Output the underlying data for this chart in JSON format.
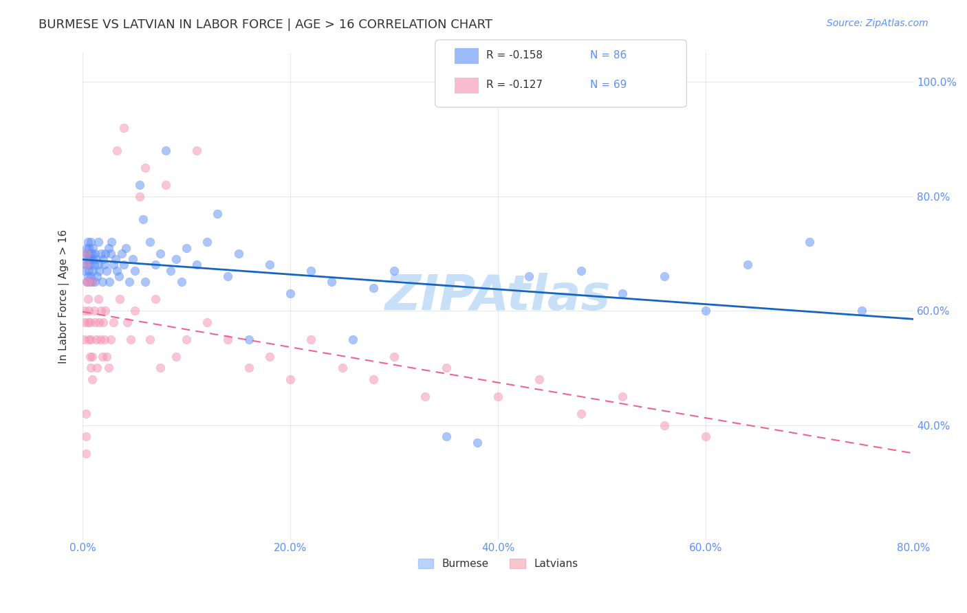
{
  "title": "BURMESE VS LATVIAN IN LABOR FORCE | AGE > 16 CORRELATION CHART",
  "source": "Source: ZipAtlas.com",
  "ylabel": "In Labor Force | Age > 16",
  "x_tick_labels": [
    "0.0%",
    "20.0%",
    "40.0%",
    "60.0%",
    "80.0%"
  ],
  "x_tick_positions": [
    0.0,
    0.2,
    0.4,
    0.6,
    0.8
  ],
  "y_tick_labels_right": [
    "40.0%",
    "60.0%",
    "80.0%",
    "100.0%"
  ],
  "y_tick_positions_right": [
    0.4,
    0.6,
    0.8,
    1.0
  ],
  "xlim": [
    0.0,
    0.8
  ],
  "ylim": [
    0.2,
    1.05
  ],
  "legend_R_labels": [
    "R = -0.158",
    "R = -0.127"
  ],
  "legend_N_labels": [
    "N = 86",
    "N = 69"
  ],
  "legend_labels_bottom": [
    "Burmese",
    "Latvians"
  ],
  "legend_colors_bottom": [
    "#8ab4f8",
    "#f4a0b0"
  ],
  "watermark": "ZIPAtlas",
  "watermark_color": "#c8dff8",
  "blue_color": "#5b8ff9",
  "pink_color": "#f48fb1",
  "blue_line_color": "#1565c0",
  "pink_line_color": "#f06292",
  "title_color": "#333333",
  "source_color": "#5b8ff9",
  "axis_label_color": "#333333",
  "tick_label_color": "#5b8ff9",
  "grid_color": "#cccccc",
  "background_color": "#ffffff",
  "burmese_x": [
    0.002,
    0.003,
    0.003,
    0.004,
    0.004,
    0.004,
    0.005,
    0.005,
    0.005,
    0.005,
    0.006,
    0.006,
    0.006,
    0.007,
    0.007,
    0.007,
    0.008,
    0.008,
    0.008,
    0.009,
    0.009,
    0.01,
    0.01,
    0.01,
    0.011,
    0.012,
    0.012,
    0.013,
    0.014,
    0.015,
    0.015,
    0.016,
    0.018,
    0.019,
    0.02,
    0.021,
    0.022,
    0.023,
    0.025,
    0.026,
    0.027,
    0.028,
    0.03,
    0.032,
    0.033,
    0.035,
    0.038,
    0.04,
    0.042,
    0.045,
    0.048,
    0.05,
    0.055,
    0.058,
    0.06,
    0.065,
    0.07,
    0.075,
    0.08,
    0.085,
    0.09,
    0.095,
    0.1,
    0.11,
    0.12,
    0.13,
    0.14,
    0.15,
    0.16,
    0.18,
    0.2,
    0.22,
    0.24,
    0.26,
    0.28,
    0.3,
    0.35,
    0.38,
    0.43,
    0.48,
    0.52,
    0.56,
    0.6,
    0.64,
    0.7,
    0.75
  ],
  "burmese_y": [
    0.67,
    0.7,
    0.68,
    0.65,
    0.69,
    0.71,
    0.66,
    0.7,
    0.72,
    0.68,
    0.67,
    0.69,
    0.71,
    0.65,
    0.68,
    0.7,
    0.66,
    0.69,
    0.72,
    0.65,
    0.7,
    0.67,
    0.69,
    0.71,
    0.68,
    0.7,
    0.65,
    0.69,
    0.66,
    0.68,
    0.72,
    0.67,
    0.7,
    0.65,
    0.69,
    0.68,
    0.7,
    0.67,
    0.71,
    0.65,
    0.7,
    0.72,
    0.68,
    0.69,
    0.67,
    0.66,
    0.7,
    0.68,
    0.71,
    0.65,
    0.69,
    0.67,
    0.82,
    0.76,
    0.65,
    0.72,
    0.68,
    0.7,
    0.88,
    0.67,
    0.69,
    0.65,
    0.71,
    0.68,
    0.72,
    0.77,
    0.66,
    0.7,
    0.55,
    0.68,
    0.63,
    0.67,
    0.65,
    0.55,
    0.64,
    0.67,
    0.38,
    0.37,
    0.66,
    0.67,
    0.63,
    0.66,
    0.6,
    0.68,
    0.72,
    0.6
  ],
  "latvian_x": [
    0.001,
    0.002,
    0.002,
    0.003,
    0.003,
    0.003,
    0.004,
    0.004,
    0.004,
    0.005,
    0.005,
    0.005,
    0.006,
    0.006,
    0.007,
    0.007,
    0.008,
    0.008,
    0.009,
    0.009,
    0.01,
    0.011,
    0.012,
    0.013,
    0.014,
    0.015,
    0.016,
    0.017,
    0.018,
    0.019,
    0.02,
    0.021,
    0.022,
    0.023,
    0.025,
    0.027,
    0.03,
    0.033,
    0.036,
    0.04,
    0.043,
    0.046,
    0.05,
    0.055,
    0.06,
    0.065,
    0.07,
    0.075,
    0.08,
    0.09,
    0.1,
    0.11,
    0.12,
    0.14,
    0.16,
    0.18,
    0.2,
    0.22,
    0.25,
    0.28,
    0.3,
    0.33,
    0.35,
    0.4,
    0.44,
    0.48,
    0.52,
    0.56,
    0.6
  ],
  "latvian_y": [
    0.55,
    0.6,
    0.58,
    0.35,
    0.38,
    0.42,
    0.68,
    0.65,
    0.7,
    0.58,
    0.62,
    0.65,
    0.55,
    0.6,
    0.52,
    0.58,
    0.5,
    0.55,
    0.52,
    0.48,
    0.65,
    0.6,
    0.58,
    0.55,
    0.5,
    0.62,
    0.58,
    0.55,
    0.6,
    0.52,
    0.58,
    0.55,
    0.6,
    0.52,
    0.5,
    0.55,
    0.58,
    0.88,
    0.62,
    0.92,
    0.58,
    0.55,
    0.6,
    0.8,
    0.85,
    0.55,
    0.62,
    0.5,
    0.82,
    0.52,
    0.55,
    0.88,
    0.58,
    0.55,
    0.5,
    0.52,
    0.48,
    0.55,
    0.5,
    0.48,
    0.52,
    0.45,
    0.5,
    0.45,
    0.48,
    0.42,
    0.45,
    0.4,
    0.38
  ]
}
